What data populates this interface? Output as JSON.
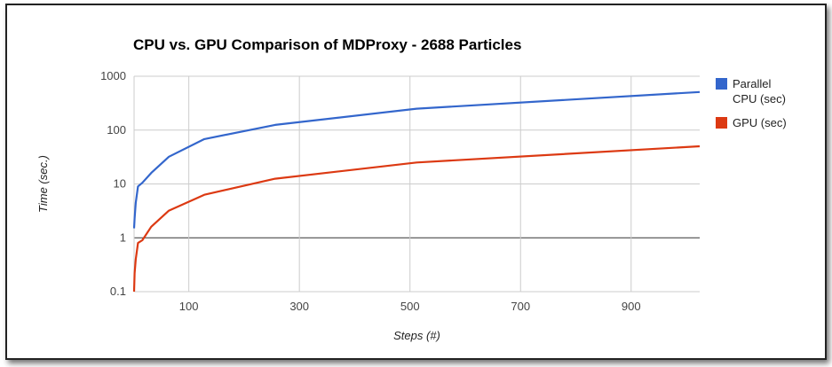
{
  "chart_data": {
    "type": "line",
    "title": "CPU vs. GPU Comparison of MDProxy - 2688 Particles",
    "xlabel": "Steps (#)",
    "ylabel": "Time (sec.)",
    "y_scale": "log",
    "xlim": [
      1,
      1024
    ],
    "ylim": [
      0.1,
      1000
    ],
    "x_ticks": [
      100,
      300,
      500,
      700,
      900
    ],
    "y_ticks": [
      0.1,
      1,
      10,
      100,
      1000
    ],
    "y_tick_labels": [
      "0.1",
      "1",
      "10",
      "100",
      "1000"
    ],
    "grid": true,
    "legend_position": "right",
    "x": [
      1,
      2,
      4,
      8,
      16,
      32,
      64,
      128,
      256,
      512,
      1024
    ],
    "series": [
      {
        "name": "Parallel CPU (sec)",
        "color": "#3366cc",
        "values": [
          1.5,
          2.3,
          4.5,
          9,
          10.5,
          16,
          32,
          68,
          125,
          250,
          510
        ]
      },
      {
        "name": "GPU (sec)",
        "color": "#dc3912",
        "values": [
          0.1,
          0.22,
          0.4,
          0.8,
          0.9,
          1.6,
          3.2,
          6.3,
          12.5,
          25,
          50
        ]
      }
    ]
  }
}
